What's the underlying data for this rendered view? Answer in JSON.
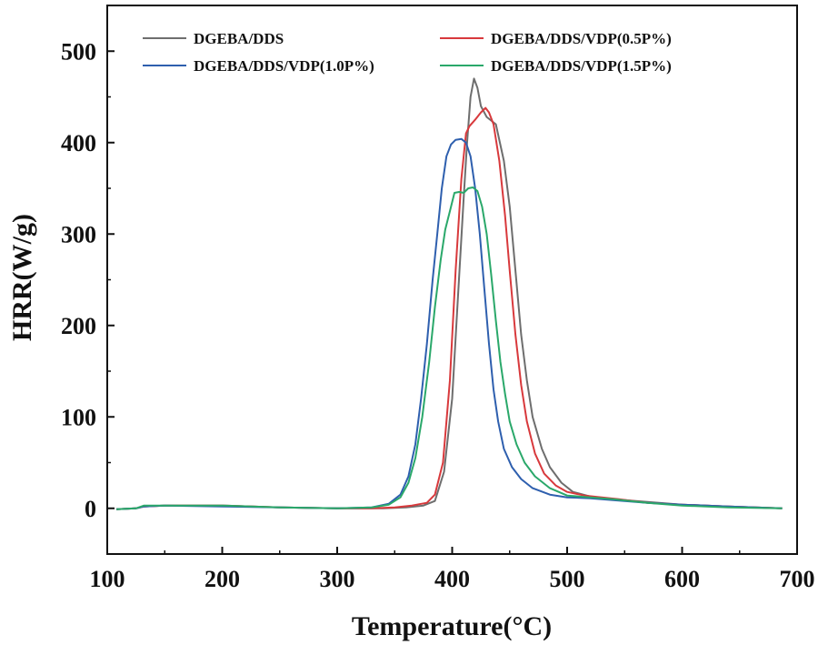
{
  "chart_data": {
    "type": "line",
    "title": "",
    "xlabel": "Temperature(°C)",
    "ylabel": "HRR(W/g)",
    "xlim": [
      100,
      700
    ],
    "ylim": [
      -50,
      550
    ],
    "xticks": [
      100,
      200,
      300,
      400,
      500,
      600,
      700
    ],
    "yticks": [
      0,
      100,
      200,
      300,
      400,
      500
    ],
    "grid": false,
    "legend_position": "top",
    "series": [
      {
        "name": "DGEBA/DDS",
        "color": "#6e6e6e",
        "points": [
          [
            108,
            -1
          ],
          [
            125,
            0
          ],
          [
            132,
            2
          ],
          [
            150,
            3
          ],
          [
            180,
            3
          ],
          [
            200,
            3
          ],
          [
            250,
            1
          ],
          [
            300,
            0
          ],
          [
            340,
            0
          ],
          [
            360,
            1
          ],
          [
            375,
            3
          ],
          [
            385,
            8
          ],
          [
            393,
            40
          ],
          [
            400,
            120
          ],
          [
            405,
            230
          ],
          [
            410,
            340
          ],
          [
            413,
            400
          ],
          [
            416,
            450
          ],
          [
            419,
            470
          ],
          [
            422,
            460
          ],
          [
            425,
            440
          ],
          [
            430,
            428
          ],
          [
            438,
            420
          ],
          [
            445,
            380
          ],
          [
            450,
            330
          ],
          [
            455,
            260
          ],
          [
            460,
            190
          ],
          [
            465,
            140
          ],
          [
            470,
            100
          ],
          [
            478,
            65
          ],
          [
            485,
            45
          ],
          [
            495,
            28
          ],
          [
            505,
            18
          ],
          [
            520,
            13
          ],
          [
            540,
            10
          ],
          [
            560,
            8
          ],
          [
            600,
            4
          ],
          [
            640,
            2
          ],
          [
            687,
            0
          ]
        ]
      },
      {
        "name": "DGEBA/DDS/VDP(0.5P%)",
        "color": "#d8393c",
        "points": [
          [
            108,
            -1
          ],
          [
            125,
            0
          ],
          [
            132,
            2
          ],
          [
            150,
            3
          ],
          [
            200,
            3
          ],
          [
            250,
            1
          ],
          [
            300,
            0
          ],
          [
            330,
            0
          ],
          [
            350,
            1
          ],
          [
            365,
            3
          ],
          [
            378,
            6
          ],
          [
            385,
            15
          ],
          [
            392,
            50
          ],
          [
            398,
            140
          ],
          [
            403,
            260
          ],
          [
            408,
            360
          ],
          [
            412,
            410
          ],
          [
            415,
            418
          ],
          [
            420,
            425
          ],
          [
            425,
            433
          ],
          [
            429,
            438
          ],
          [
            432,
            433
          ],
          [
            436,
            420
          ],
          [
            441,
            380
          ],
          [
            446,
            320
          ],
          [
            450,
            260
          ],
          [
            455,
            190
          ],
          [
            460,
            135
          ],
          [
            465,
            95
          ],
          [
            472,
            60
          ],
          [
            480,
            38
          ],
          [
            490,
            25
          ],
          [
            500,
            18
          ],
          [
            515,
            14
          ],
          [
            530,
            12
          ],
          [
            545,
            10
          ],
          [
            570,
            6
          ],
          [
            600,
            4
          ],
          [
            640,
            2
          ],
          [
            687,
            0
          ]
        ]
      },
      {
        "name": "DGEBA/DDS/VDP(1.0P%)",
        "color": "#2e5fae",
        "points": [
          [
            108,
            -1
          ],
          [
            125,
            0
          ],
          [
            132,
            2
          ],
          [
            150,
            3
          ],
          [
            200,
            2
          ],
          [
            250,
            1
          ],
          [
            300,
            0
          ],
          [
            330,
            1
          ],
          [
            345,
            5
          ],
          [
            355,
            15
          ],
          [
            362,
            35
          ],
          [
            368,
            70
          ],
          [
            373,
            120
          ],
          [
            378,
            180
          ],
          [
            383,
            250
          ],
          [
            387,
            300
          ],
          [
            391,
            350
          ],
          [
            395,
            385
          ],
          [
            399,
            398
          ],
          [
            403,
            403
          ],
          [
            408,
            404
          ],
          [
            412,
            400
          ],
          [
            416,
            385
          ],
          [
            420,
            350
          ],
          [
            424,
            300
          ],
          [
            428,
            240
          ],
          [
            432,
            180
          ],
          [
            436,
            130
          ],
          [
            440,
            95
          ],
          [
            445,
            65
          ],
          [
            452,
            45
          ],
          [
            460,
            32
          ],
          [
            470,
            22
          ],
          [
            485,
            15
          ],
          [
            500,
            12
          ],
          [
            520,
            11
          ],
          [
            540,
            9
          ],
          [
            570,
            6
          ],
          [
            600,
            4
          ],
          [
            640,
            2
          ],
          [
            687,
            0
          ]
        ]
      },
      {
        "name": "DGEBA/DDS/VDP(1.5P%)",
        "color": "#2aa86a",
        "points": [
          [
            108,
            -1
          ],
          [
            125,
            0
          ],
          [
            132,
            3
          ],
          [
            150,
            3
          ],
          [
            200,
            3
          ],
          [
            250,
            1
          ],
          [
            300,
            0
          ],
          [
            330,
            1
          ],
          [
            345,
            4
          ],
          [
            355,
            12
          ],
          [
            362,
            28
          ],
          [
            368,
            55
          ],
          [
            374,
            100
          ],
          [
            380,
            160
          ],
          [
            385,
            220
          ],
          [
            390,
            272
          ],
          [
            394,
            305
          ],
          [
            398,
            325
          ],
          [
            402,
            345
          ],
          [
            406,
            346
          ],
          [
            410,
            345
          ],
          [
            414,
            350
          ],
          [
            418,
            351
          ],
          [
            422,
            347
          ],
          [
            426,
            330
          ],
          [
            430,
            300
          ],
          [
            434,
            255
          ],
          [
            438,
            205
          ],
          [
            442,
            160
          ],
          [
            446,
            125
          ],
          [
            450,
            95
          ],
          [
            456,
            70
          ],
          [
            463,
            50
          ],
          [
            472,
            35
          ],
          [
            485,
            22
          ],
          [
            500,
            14
          ],
          [
            520,
            12
          ],
          [
            540,
            10
          ],
          [
            570,
            6
          ],
          [
            600,
            3
          ],
          [
            640,
            1
          ],
          [
            687,
            0
          ]
        ]
      }
    ]
  }
}
